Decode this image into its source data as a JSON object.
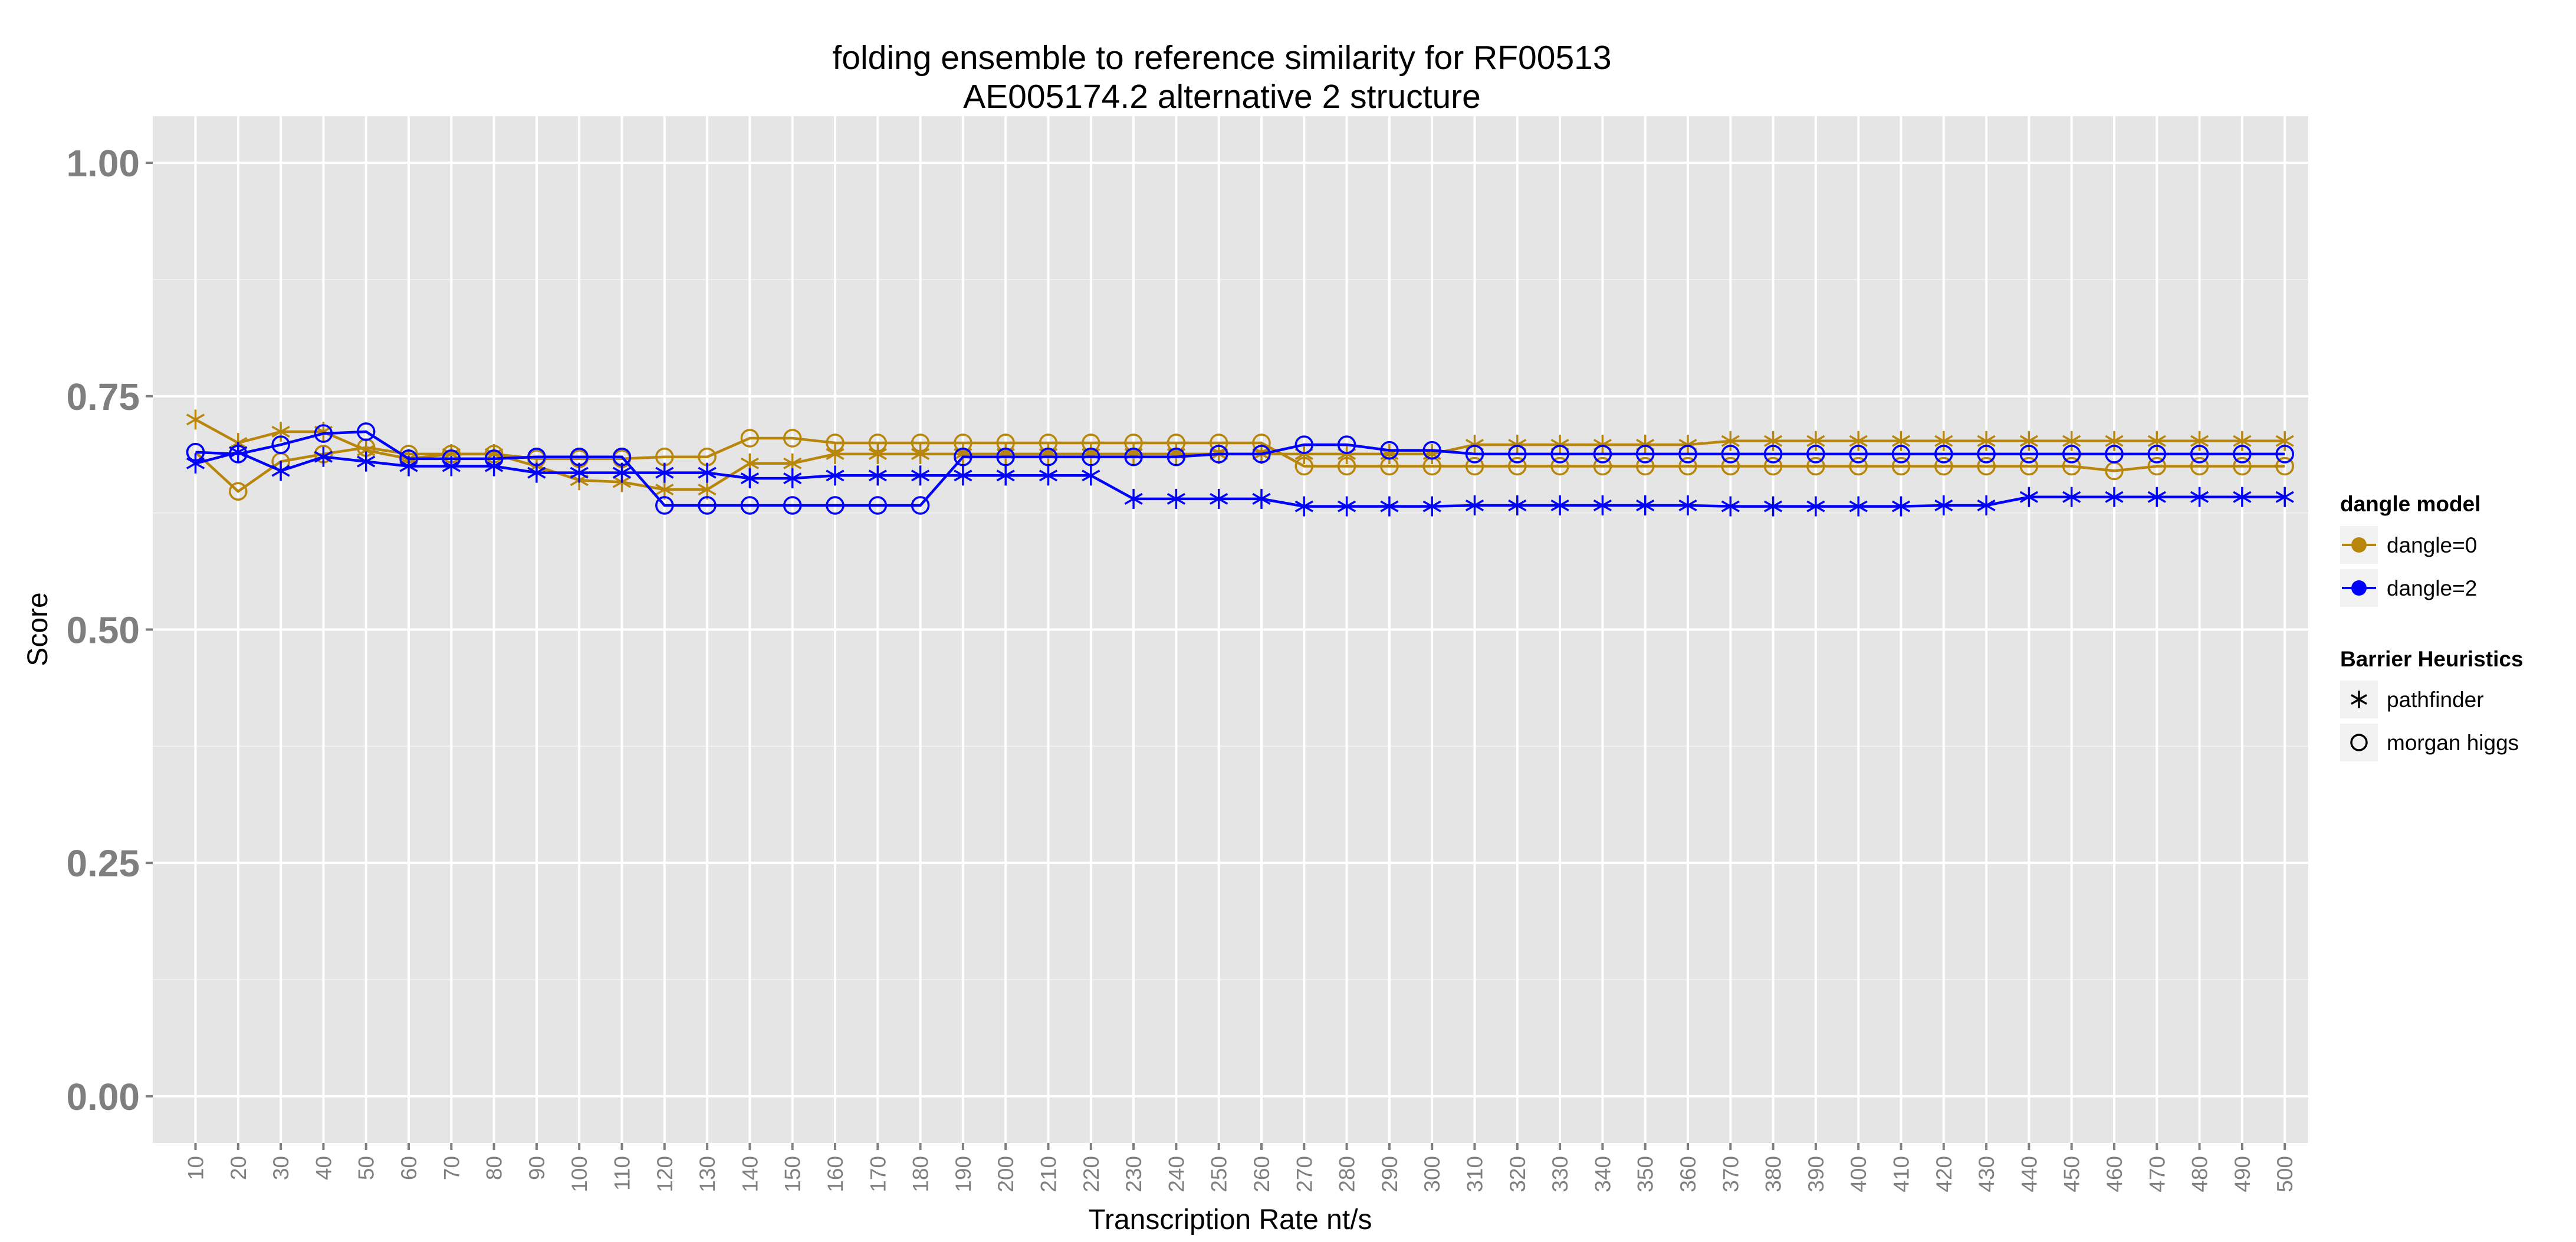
{
  "chart_data": {
    "type": "line",
    "title": "folding ensemble to reference similarity for RF00513",
    "subtitle": "AE005174.2 alternative 2 structure",
    "xlabel": "Transcription Rate nt/s",
    "ylabel": "Score",
    "x": [
      10,
      20,
      30,
      40,
      50,
      60,
      70,
      80,
      90,
      100,
      110,
      120,
      130,
      140,
      150,
      160,
      170,
      180,
      190,
      200,
      210,
      220,
      230,
      240,
      250,
      260,
      270,
      280,
      290,
      300,
      310,
      320,
      330,
      340,
      350,
      360,
      370,
      380,
      390,
      400,
      410,
      420,
      430,
      440,
      450,
      460,
      470,
      480,
      490,
      500
    ],
    "ylim": [
      -0.05,
      1.05
    ],
    "yticks": [
      "0.00",
      "0.25",
      "0.50",
      "0.75",
      "1.00"
    ],
    "ytick_values": [
      0.0,
      0.25,
      0.5,
      0.75,
      1.0
    ],
    "grid": true,
    "legend_position": "right",
    "series": [
      {
        "name": "dangle=0",
        "color": "#b8860b",
        "heuristic": "pathfinder",
        "values": [
          0.725,
          0.7,
          0.712,
          0.712,
          0.692,
          0.683,
          0.688,
          0.688,
          0.675,
          0.66,
          0.658,
          0.65,
          0.65,
          0.678,
          0.678,
          0.688,
          0.688,
          0.688,
          0.688,
          0.688,
          0.688,
          0.688,
          0.688,
          0.688,
          0.688,
          0.688,
          0.688,
          0.688,
          0.688,
          0.688,
          0.698,
          0.698,
          0.698,
          0.698,
          0.698,
          0.698,
          0.702,
          0.702,
          0.702,
          0.702,
          0.702,
          0.702,
          0.702,
          0.702,
          0.702,
          0.702,
          0.702,
          0.702,
          0.702,
          0.702
        ]
      },
      {
        "name": "dangle=0",
        "color": "#b8860b",
        "heuristic": "morgan higgs",
        "values": [
          0.69,
          0.648,
          0.68,
          0.688,
          0.695,
          0.688,
          0.688,
          0.688,
          0.683,
          0.683,
          0.683,
          0.685,
          0.685,
          0.705,
          0.705,
          0.7,
          0.7,
          0.7,
          0.7,
          0.7,
          0.7,
          0.7,
          0.7,
          0.7,
          0.7,
          0.7,
          0.675,
          0.675,
          0.675,
          0.675,
          0.675,
          0.675,
          0.675,
          0.675,
          0.675,
          0.675,
          0.675,
          0.675,
          0.675,
          0.675,
          0.675,
          0.675,
          0.675,
          0.675,
          0.675,
          0.67,
          0.675,
          0.675,
          0.675,
          0.675
        ]
      },
      {
        "name": "dangle=2",
        "color": "#0000ff",
        "heuristic": "pathfinder",
        "values": [
          0.678,
          0.69,
          0.67,
          0.685,
          0.68,
          0.675,
          0.675,
          0.675,
          0.668,
          0.668,
          0.668,
          0.668,
          0.668,
          0.662,
          0.662,
          0.665,
          0.665,
          0.665,
          0.665,
          0.665,
          0.665,
          0.665,
          0.64,
          0.64,
          0.64,
          0.64,
          0.632,
          0.632,
          0.632,
          0.632,
          0.633,
          0.633,
          0.633,
          0.633,
          0.633,
          0.633,
          0.632,
          0.632,
          0.632,
          0.632,
          0.632,
          0.633,
          0.633,
          0.642,
          0.642,
          0.642,
          0.642,
          0.642,
          0.642,
          0.642
        ]
      },
      {
        "name": "dangle=2",
        "color": "#0000ff",
        "heuristic": "morgan higgs",
        "values": [
          0.69,
          0.688,
          0.698,
          0.71,
          0.712,
          0.683,
          0.683,
          0.683,
          0.685,
          0.685,
          0.685,
          0.633,
          0.633,
          0.633,
          0.633,
          0.633,
          0.633,
          0.633,
          0.685,
          0.685,
          0.685,
          0.685,
          0.685,
          0.685,
          0.688,
          0.688,
          0.698,
          0.698,
          0.692,
          0.692,
          0.688,
          0.688,
          0.688,
          0.688,
          0.688,
          0.688,
          0.688,
          0.688,
          0.688,
          0.688,
          0.688,
          0.688,
          0.688,
          0.688,
          0.688,
          0.688,
          0.688,
          0.688,
          0.688,
          0.688
        ]
      }
    ],
    "legend": {
      "color_title": "dangle model",
      "color_items": [
        {
          "label": "dangle=0",
          "color": "#b8860b"
        },
        {
          "label": "dangle=2",
          "color": "#0000ff"
        }
      ],
      "shape_title": "Barrier Heuristics",
      "shape_items": [
        {
          "label": "pathfinder",
          "shape": "asterisk-icon"
        },
        {
          "label": "morgan higgs",
          "shape": "open-circle-icon"
        }
      ]
    },
    "panel_background": "#e5e5e5",
    "grid_color": "#ffffff"
  }
}
